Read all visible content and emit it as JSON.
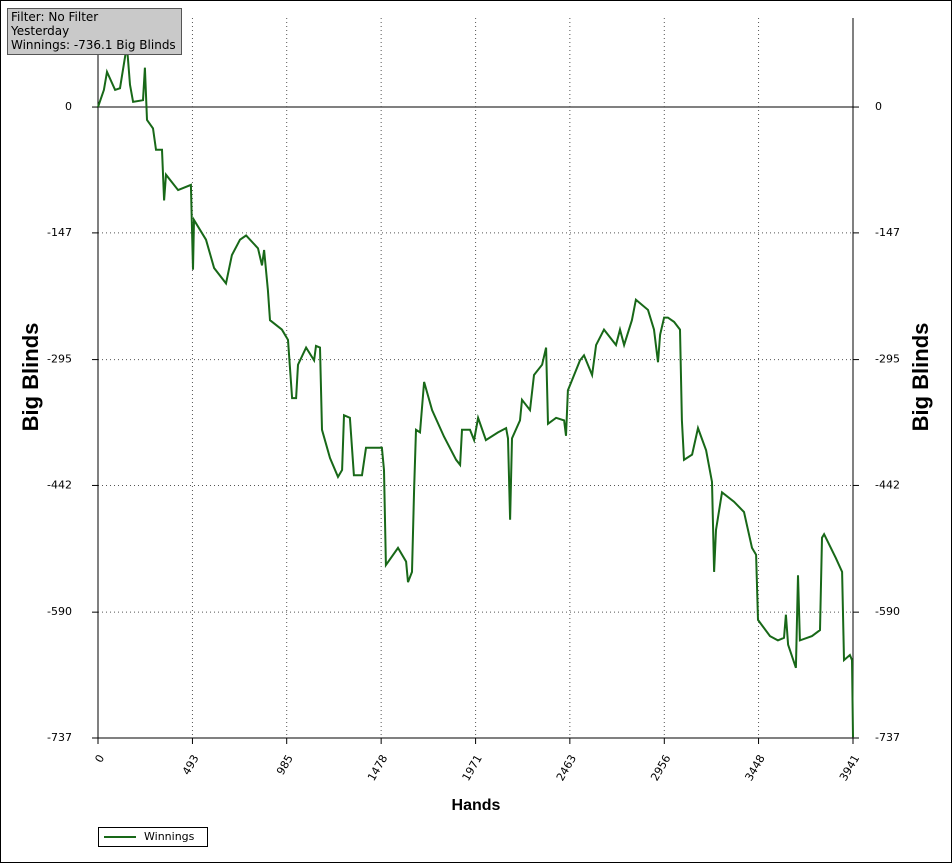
{
  "info_box": {
    "lines": [
      "Filter: No Filter",
      "Yesterday",
      "Winnings: -736.1 Big Blinds"
    ]
  },
  "chart_data": {
    "type": "line",
    "x_label": "Hands",
    "y_label": "Big Blinds",
    "y2_label": "Big Blinds",
    "xlim": [
      0,
      3941
    ],
    "xticks": [
      0,
      493,
      985,
      1478,
      1971,
      2463,
      2956,
      3448,
      3941
    ],
    "ylim": [
      -737,
      104
    ],
    "yticks": [
      0,
      -147,
      -295,
      -442,
      -590,
      -737
    ],
    "grid": true,
    "zero_line": true,
    "legend_position": "bottom-left",
    "series": [
      {
        "name": "Winnings",
        "color": "#186818",
        "x": [
          0,
          31,
          47,
          89,
          115,
          151,
          167,
          183,
          235,
          245,
          256,
          287,
          303,
          334,
          345,
          355,
          418,
          485,
          496,
          501,
          564,
          606,
          668,
          699,
          741,
          773,
          835,
          856,
          867,
          887,
          898,
          960,
          992,
          1013,
          1034,
          1044,
          1086,
          1128,
          1138,
          1159,
          1169,
          1211,
          1253,
          1274,
          1284,
          1315,
          1336,
          1378,
          1399,
          1482,
          1493,
          1503,
          1566,
          1608,
          1618,
          1639,
          1650,
          1660,
          1681,
          1702,
          1744,
          1806,
          1869,
          1890,
          1900,
          1942,
          1963,
          1984,
          2025,
          2088,
          2130,
          2140,
          2151,
          2161,
          2203,
          2213,
          2255,
          2276,
          2318,
          2339,
          2349,
          2391,
          2433,
          2443,
          2453,
          2516,
          2537,
          2579,
          2600,
          2641,
          2704,
          2725,
          2746,
          2787,
          2808,
          2871,
          2902,
          2923,
          2934,
          2955,
          2975,
          3007,
          3038,
          3048,
          3059,
          3101,
          3132,
          3174,
          3205,
          3216,
          3226,
          3257,
          3320,
          3372,
          3414,
          3435,
          3445,
          3508,
          3549,
          3581,
          3591,
          3602,
          3643,
          3654,
          3664,
          3727,
          3769,
          3779,
          3790,
          3852,
          3884,
          3894,
          3925,
          3936,
          3941
        ],
        "values": [
          0,
          20,
          41,
          20,
          22,
          72,
          26,
          6,
          8,
          46,
          -15,
          -25,
          -50,
          -50,
          -109,
          -79,
          -97,
          -91,
          -190,
          -132,
          -155,
          -188,
          -206,
          -173,
          -155,
          -150,
          -165,
          -185,
          -167,
          -214,
          -249,
          -260,
          -272,
          -340,
          -340,
          -301,
          -281,
          -296,
          -279,
          -281,
          -377,
          -410,
          -432,
          -424,
          -360,
          -363,
          -430,
          -430,
          -398,
          -398,
          -424,
          -535,
          -515,
          -531,
          -555,
          -543,
          -447,
          -377,
          -380,
          -321,
          -354,
          -385,
          -412,
          -418,
          -377,
          -377,
          -389,
          -363,
          -389,
          -380,
          -375,
          -387,
          -482,
          -387,
          -366,
          -342,
          -354,
          -313,
          -301,
          -281,
          -370,
          -363,
          -366,
          -384,
          -331,
          -296,
          -290,
          -313,
          -278,
          -260,
          -278,
          -260,
          -278,
          -249,
          -225,
          -237,
          -260,
          -298,
          -266,
          -246,
          -246,
          -251,
          -260,
          -366,
          -412,
          -406,
          -375,
          -401,
          -438,
          -543,
          -494,
          -450,
          -461,
          -473,
          -515,
          -523,
          -599,
          -618,
          -623,
          -620,
          -593,
          -628,
          -655,
          -547,
          -623,
          -618,
          -611,
          -503,
          -499,
          -527,
          -543,
          -646,
          -640,
          -646,
          -736.1
        ]
      }
    ]
  }
}
